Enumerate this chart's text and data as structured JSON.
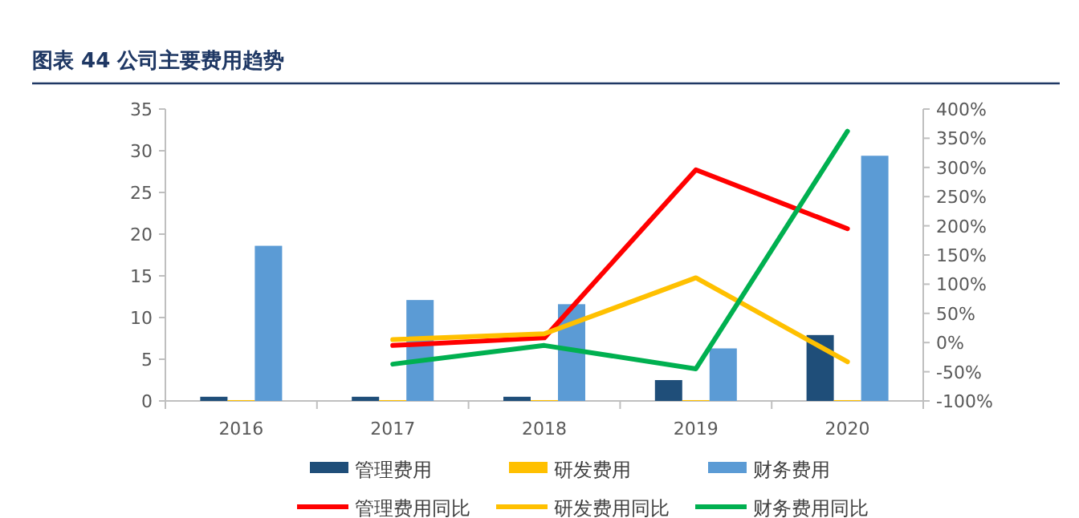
{
  "chart_data": {
    "type": "bar",
    "title": "图表 44  公司主要费用趋势",
    "categories": [
      "2016",
      "2017",
      "2018",
      "2019",
      "2020"
    ],
    "series": [
      {
        "name": "管理费用",
        "color": "#1f4e79",
        "values": [
          0.5,
          0.5,
          0.5,
          2.5,
          7.9
        ]
      },
      {
        "name": "研发费用",
        "color": "#ffc000",
        "values": [
          0.1,
          0.1,
          0.1,
          0.1,
          0.1
        ]
      },
      {
        "name": "财务费用",
        "color": "#5b9bd5",
        "values": [
          18.6,
          12.1,
          11.6,
          6.3,
          29.4
        ]
      },
      {
        "name": "管理费用同比",
        "type": "line",
        "axis": "y2",
        "color": "#ff0000",
        "values": [
          null,
          -5,
          8,
          296,
          195
        ]
      },
      {
        "name": "研发费用同比",
        "type": "line",
        "axis": "y2",
        "color": "#ffc000",
        "values": [
          null,
          5,
          15,
          111,
          -33
        ]
      },
      {
        "name": "财务费用同比",
        "type": "line",
        "axis": "y2",
        "color": "#00b050",
        "values": [
          null,
          -37,
          -5,
          -45,
          362
        ]
      }
    ],
    "ylim": [
      0,
      35
    ],
    "yticks": [
      0,
      5,
      10,
      15,
      20,
      25,
      30,
      35
    ],
    "y2lim": [
      -100,
      400
    ],
    "y2ticks": [
      {
        "value": -100,
        "label": "-100%"
      },
      {
        "value": -50,
        "label": "-50%"
      },
      {
        "value": 0,
        "label": "0%"
      },
      {
        "value": 50,
        "label": "50%"
      },
      {
        "value": 100,
        "label": "100%"
      },
      {
        "value": 150,
        "label": "150%"
      },
      {
        "value": 200,
        "label": "200%"
      },
      {
        "value": 250,
        "label": "250%"
      },
      {
        "value": 300,
        "label": "300%"
      },
      {
        "value": 350,
        "label": "350%"
      },
      {
        "value": 400,
        "label": "400%"
      }
    ],
    "grid": false,
    "legend": "bottom"
  }
}
